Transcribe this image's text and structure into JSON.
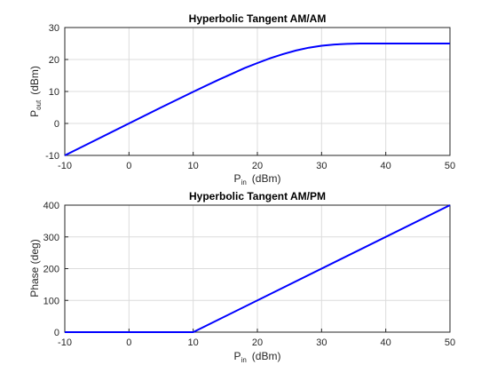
{
  "chart_data": [
    {
      "type": "line",
      "title": "Hyperbolic Tangent AM/AM",
      "xlabel": "P_in (dBm)",
      "xlabel_main": "P",
      "xlabel_sub": "in",
      "xlabel_unit": "(dBm)",
      "ylabel": "P_out (dBm)",
      "ylabel_main": "P",
      "ylabel_sub": "out",
      "ylabel_unit": "(dBm)",
      "xlim": [
        -10,
        50
      ],
      "ylim": [
        -10,
        30
      ],
      "xticks": [
        "-10",
        "0",
        "10",
        "20",
        "30",
        "40",
        "50"
      ],
      "yticks": [
        "-10",
        "0",
        "10",
        "20",
        "30"
      ],
      "grid": true,
      "color": "#0000ff",
      "x": [
        -10,
        -5,
        0,
        5,
        10,
        12,
        14,
        16,
        18,
        20,
        22,
        24,
        26,
        28,
        30,
        32,
        34,
        36,
        40,
        45,
        50
      ],
      "y": [
        -10,
        -5,
        0,
        5,
        9.9,
        11.8,
        13.7,
        15.5,
        17.3,
        18.9,
        20.4,
        21.7,
        22.8,
        23.7,
        24.3,
        24.7,
        24.9,
        25,
        25,
        25,
        25
      ]
    },
    {
      "type": "line",
      "title": "Hyperbolic Tangent AM/PM",
      "xlabel": "P_in (dBm)",
      "xlabel_main": "P",
      "xlabel_sub": "in",
      "xlabel_unit": "(dBm)",
      "ylabel": "Phase (deg)",
      "xlim": [
        -10,
        50
      ],
      "ylim": [
        0,
        400
      ],
      "xticks": [
        "-10",
        "0",
        "10",
        "20",
        "30",
        "40",
        "50"
      ],
      "yticks": [
        "0",
        "100",
        "200",
        "300",
        "400"
      ],
      "grid": true,
      "color": "#0000ff",
      "x": [
        -10,
        10,
        50
      ],
      "y": [
        0,
        0,
        400
      ]
    }
  ]
}
